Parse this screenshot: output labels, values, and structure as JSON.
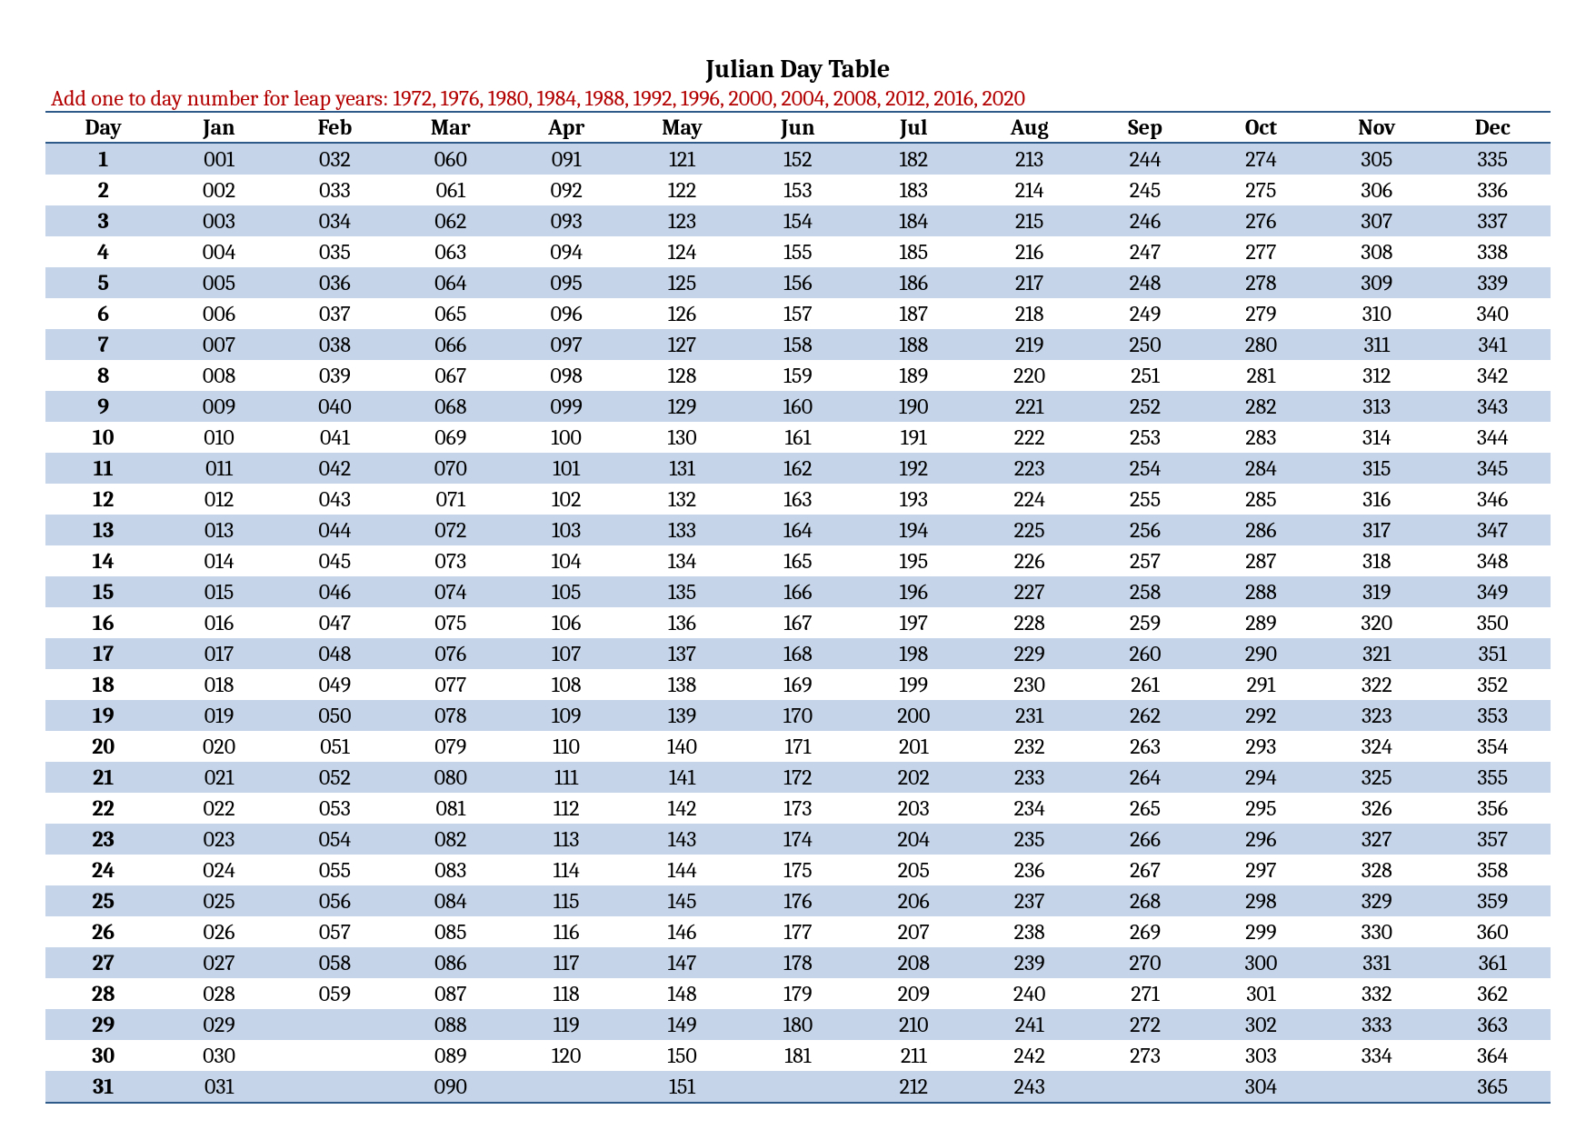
{
  "title": "Julian Day Table",
  "subtitle": "Add one to day number for leap years: 1972, 1976, 1980, 1984, 1988, 1992, 1996, 2000, 2004, 2008, 2012, 2016, 2020",
  "subtitle_color": "#b30000",
  "header_border_color": "#2e5a8a",
  "row_colors": {
    "odd": "#c5d4e8",
    "even": "#ffffff"
  },
  "columns": [
    "Day",
    "Jan",
    "Feb",
    "Mar",
    "Apr",
    "May",
    "Jun",
    "Jul",
    "Aug",
    "Sep",
    "Oct",
    "Nov",
    "Dec"
  ],
  "rows": [
    [
      "1",
      "001",
      "032",
      "060",
      "091",
      "121",
      "152",
      "182",
      "213",
      "244",
      "274",
      "305",
      "335"
    ],
    [
      "2",
      "002",
      "033",
      "061",
      "092",
      "122",
      "153",
      "183",
      "214",
      "245",
      "275",
      "306",
      "336"
    ],
    [
      "3",
      "003",
      "034",
      "062",
      "093",
      "123",
      "154",
      "184",
      "215",
      "246",
      "276",
      "307",
      "337"
    ],
    [
      "4",
      "004",
      "035",
      "063",
      "094",
      "124",
      "155",
      "185",
      "216",
      "247",
      "277",
      "308",
      "338"
    ],
    [
      "5",
      "005",
      "036",
      "064",
      "095",
      "125",
      "156",
      "186",
      "217",
      "248",
      "278",
      "309",
      "339"
    ],
    [
      "6",
      "006",
      "037",
      "065",
      "096",
      "126",
      "157",
      "187",
      "218",
      "249",
      "279",
      "310",
      "340"
    ],
    [
      "7",
      "007",
      "038",
      "066",
      "097",
      "127",
      "158",
      "188",
      "219",
      "250",
      "280",
      "311",
      "341"
    ],
    [
      "8",
      "008",
      "039",
      "067",
      "098",
      "128",
      "159",
      "189",
      "220",
      "251",
      "281",
      "312",
      "342"
    ],
    [
      "9",
      "009",
      "040",
      "068",
      "099",
      "129",
      "160",
      "190",
      "221",
      "252",
      "282",
      "313",
      "343"
    ],
    [
      "10",
      "010",
      "041",
      "069",
      "100",
      "130",
      "161",
      "191",
      "222",
      "253",
      "283",
      "314",
      "344"
    ],
    [
      "11",
      "011",
      "042",
      "070",
      "101",
      "131",
      "162",
      "192",
      "223",
      "254",
      "284",
      "315",
      "345"
    ],
    [
      "12",
      "012",
      "043",
      "071",
      "102",
      "132",
      "163",
      "193",
      "224",
      "255",
      "285",
      "316",
      "346"
    ],
    [
      "13",
      "013",
      "044",
      "072",
      "103",
      "133",
      "164",
      "194",
      "225",
      "256",
      "286",
      "317",
      "347"
    ],
    [
      "14",
      "014",
      "045",
      "073",
      "104",
      "134",
      "165",
      "195",
      "226",
      "257",
      "287",
      "318",
      "348"
    ],
    [
      "15",
      "015",
      "046",
      "074",
      "105",
      "135",
      "166",
      "196",
      "227",
      "258",
      "288",
      "319",
      "349"
    ],
    [
      "16",
      "016",
      "047",
      "075",
      "106",
      "136",
      "167",
      "197",
      "228",
      "259",
      "289",
      "320",
      "350"
    ],
    [
      "17",
      "017",
      "048",
      "076",
      "107",
      "137",
      "168",
      "198",
      "229",
      "260",
      "290",
      "321",
      "351"
    ],
    [
      "18",
      "018",
      "049",
      "077",
      "108",
      "138",
      "169",
      "199",
      "230",
      "261",
      "291",
      "322",
      "352"
    ],
    [
      "19",
      "019",
      "050",
      "078",
      "109",
      "139",
      "170",
      "200",
      "231",
      "262",
      "292",
      "323",
      "353"
    ],
    [
      "20",
      "020",
      "051",
      "079",
      "110",
      "140",
      "171",
      "201",
      "232",
      "263",
      "293",
      "324",
      "354"
    ],
    [
      "21",
      "021",
      "052",
      "080",
      "111",
      "141",
      "172",
      "202",
      "233",
      "264",
      "294",
      "325",
      "355"
    ],
    [
      "22",
      "022",
      "053",
      "081",
      "112",
      "142",
      "173",
      "203",
      "234",
      "265",
      "295",
      "326",
      "356"
    ],
    [
      "23",
      "023",
      "054",
      "082",
      "113",
      "143",
      "174",
      "204",
      "235",
      "266",
      "296",
      "327",
      "357"
    ],
    [
      "24",
      "024",
      "055",
      "083",
      "114",
      "144",
      "175",
      "205",
      "236",
      "267",
      "297",
      "328",
      "358"
    ],
    [
      "25",
      "025",
      "056",
      "084",
      "115",
      "145",
      "176",
      "206",
      "237",
      "268",
      "298",
      "329",
      "359"
    ],
    [
      "26",
      "026",
      "057",
      "085",
      "116",
      "146",
      "177",
      "207",
      "238",
      "269",
      "299",
      "330",
      "360"
    ],
    [
      "27",
      "027",
      "058",
      "086",
      "117",
      "147",
      "178",
      "208",
      "239",
      "270",
      "300",
      "331",
      "361"
    ],
    [
      "28",
      "028",
      "059",
      "087",
      "118",
      "148",
      "179",
      "209",
      "240",
      "271",
      "301",
      "332",
      "362"
    ],
    [
      "29",
      "029",
      "",
      "088",
      "119",
      "149",
      "180",
      "210",
      "241",
      "272",
      "302",
      "333",
      "363"
    ],
    [
      "30",
      "030",
      "",
      "089",
      "120",
      "150",
      "181",
      "211",
      "242",
      "273",
      "303",
      "334",
      "364"
    ],
    [
      "31",
      "031",
      "",
      "090",
      "",
      "151",
      "",
      "212",
      "243",
      "",
      "304",
      "",
      "365"
    ]
  ]
}
